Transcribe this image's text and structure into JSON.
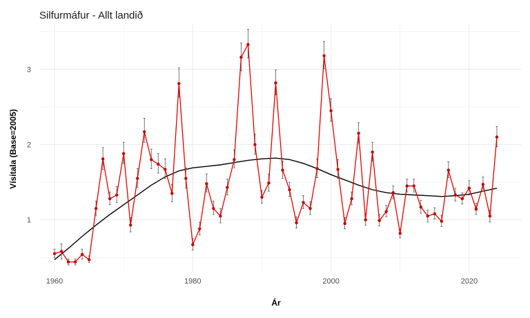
{
  "chart_data": {
    "type": "line",
    "title": "Silfurmáfur - Allt landið",
    "xlabel": "Ár",
    "ylabel": "Vísitala (Base=2005)",
    "xlim": [
      1957.8,
      2027.5
    ],
    "ylim": [
      0.3,
      3.6
    ],
    "x_ticks": [
      1960,
      1980,
      2000,
      2020
    ],
    "y_ticks": [
      1,
      2,
      3
    ],
    "grid": true,
    "legend": "none",
    "colors": {
      "series": "#e00000",
      "points": "#c00000",
      "errorbars": "#555555",
      "trend": "#000000",
      "grid": "#ebebeb"
    },
    "series": [
      {
        "kind": "index",
        "x": [
          1960,
          1961,
          1962,
          1963,
          1964,
          1965,
          1966,
          1967,
          1968,
          1969,
          1970,
          1971,
          1972,
          1973,
          1974,
          1975,
          1976,
          1977,
          1978,
          1979,
          1980,
          1981,
          1982,
          1983,
          1984,
          1985,
          1986,
          1987,
          1988,
          1989,
          1990,
          1991,
          1992,
          1993,
          1994,
          1995,
          1996,
          1997,
          1998,
          1999,
          2000,
          2001,
          2002,
          2003,
          2004,
          2005,
          2006,
          2007,
          2008,
          2009,
          2010,
          2011,
          2012,
          2013,
          2014,
          2015,
          2016,
          2017,
          2018,
          2019,
          2020,
          2021,
          2022,
          2023,
          2024
        ],
        "values": [
          0.55,
          0.58,
          0.44,
          0.44,
          0.54,
          0.47,
          1.15,
          1.81,
          1.28,
          1.33,
          1.88,
          0.93,
          1.55,
          2.17,
          1.8,
          1.74,
          1.67,
          1.35,
          2.81,
          1.55,
          0.67,
          0.88,
          1.48,
          1.15,
          1.05,
          1.43,
          1.8,
          3.16,
          3.33,
          2.0,
          1.3,
          1.49,
          2.82,
          1.66,
          1.4,
          0.96,
          1.23,
          1.15,
          1.68,
          3.18,
          2.45,
          1.67,
          0.95,
          1.28,
          2.15,
          1.0,
          1.9,
          0.99,
          1.11,
          1.36,
          0.82,
          1.45,
          1.45,
          1.17,
          1.05,
          1.08,
          0.98,
          1.66,
          1.33,
          1.28,
          1.42,
          1.14,
          1.47,
          1.05,
          2.1
        ],
        "lower": [
          0.5,
          0.48,
          0.4,
          0.4,
          0.48,
          0.43,
          1.06,
          1.67,
          1.2,
          1.23,
          1.75,
          0.84,
          1.43,
          2.03,
          1.68,
          1.62,
          1.55,
          1.24,
          2.63,
          1.42,
          0.6,
          0.8,
          1.37,
          1.07,
          0.96,
          1.33,
          1.69,
          2.98,
          3.15,
          1.87,
          1.22,
          1.38,
          2.66,
          1.55,
          1.31,
          0.89,
          1.15,
          1.07,
          1.56,
          3.01,
          2.31,
          1.55,
          0.88,
          1.2,
          2.02,
          0.93,
          1.78,
          0.92,
          1.04,
          1.28,
          0.76,
          1.37,
          1.37,
          1.09,
          0.97,
          1.01,
          0.91,
          1.56,
          1.25,
          1.21,
          1.33,
          1.07,
          1.38,
          0.97,
          1.97
        ],
        "upper": [
          0.61,
          0.68,
          0.48,
          0.48,
          0.61,
          0.52,
          1.25,
          1.96,
          1.37,
          1.44,
          2.03,
          1.03,
          1.68,
          2.35,
          1.94,
          1.88,
          1.81,
          1.47,
          3.02,
          1.69,
          0.75,
          0.97,
          1.61,
          1.25,
          1.15,
          1.54,
          1.93,
          3.35,
          3.53,
          2.14,
          1.39,
          1.61,
          2.99,
          1.78,
          1.5,
          1.04,
          1.32,
          1.24,
          1.81,
          3.37,
          2.61,
          1.8,
          1.03,
          1.37,
          2.29,
          1.08,
          2.03,
          1.07,
          1.19,
          1.45,
          0.88,
          1.54,
          1.54,
          1.26,
          1.13,
          1.16,
          1.06,
          1.77,
          1.42,
          1.36,
          1.52,
          1.22,
          1.57,
          1.13,
          2.24
        ]
      },
      {
        "kind": "trend",
        "x": [
          1960,
          1962,
          1964,
          1966,
          1968,
          1970,
          1972,
          1974,
          1976,
          1978,
          1980,
          1982,
          1984,
          1986,
          1988,
          1990,
          1992,
          1994,
          1996,
          1998,
          2000,
          2002,
          2004,
          2006,
          2008,
          2010,
          2012,
          2014,
          2016,
          2018,
          2020,
          2022,
          2024
        ],
        "values": [
          0.47,
          0.62,
          0.78,
          0.93,
          1.07,
          1.2,
          1.33,
          1.46,
          1.57,
          1.65,
          1.69,
          1.71,
          1.73,
          1.76,
          1.79,
          1.81,
          1.82,
          1.8,
          1.75,
          1.68,
          1.6,
          1.53,
          1.46,
          1.4,
          1.36,
          1.34,
          1.33,
          1.32,
          1.31,
          1.32,
          1.34,
          1.38,
          1.42
        ]
      }
    ]
  }
}
